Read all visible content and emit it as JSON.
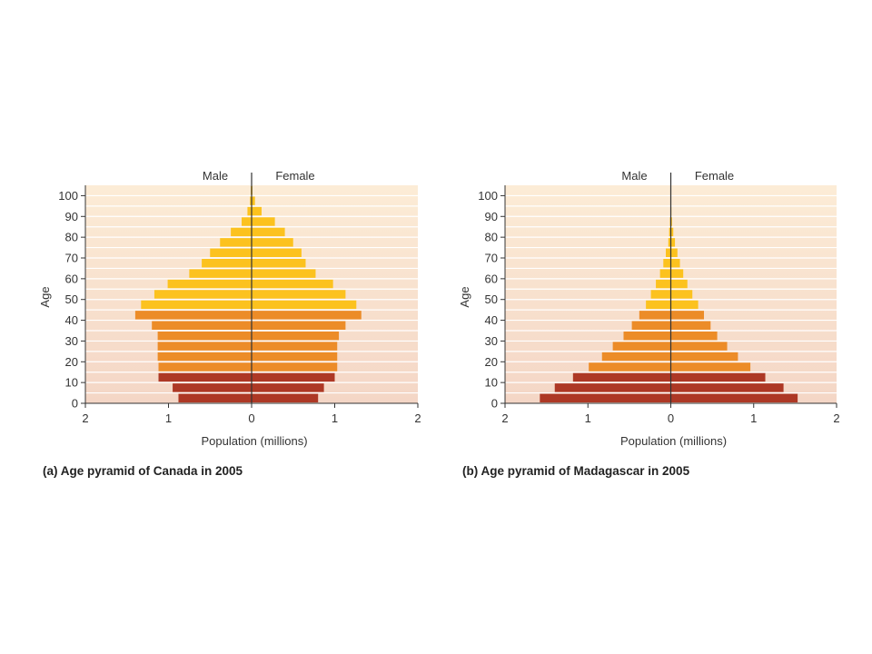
{
  "colors": {
    "background_top": "#fcecd6",
    "background_bottom": "#f4d6c6",
    "young": "#ad3825",
    "middle": "#ec8c28",
    "old": "#fcc21e",
    "grid": "#ffffff",
    "axis": "#333333"
  },
  "age_groups": [
    "0-4",
    "5-9",
    "10-14",
    "15-19",
    "20-24",
    "25-29",
    "30-34",
    "35-39",
    "40-44",
    "45-49",
    "50-54",
    "55-59",
    "60-64",
    "65-69",
    "70-74",
    "75-79",
    "80-84",
    "85-89",
    "90-94",
    "95-99",
    "100+"
  ],
  "chart_data": [
    {
      "type": "bar",
      "caption": "(a) Age pyramid of Canada in 2005",
      "xlabel": "Population (millions)",
      "ylabel": "Age",
      "left_label": "Male",
      "right_label": "Female",
      "xlim": [
        -2,
        2
      ],
      "xticks": [
        "2",
        "1",
        "0",
        "1",
        "2"
      ],
      "ylim": [
        0,
        100
      ],
      "yticks": [
        "0",
        "10",
        "20",
        "30",
        "40",
        "50",
        "60",
        "70",
        "80",
        "90",
        "100"
      ],
      "grid": true,
      "series": [
        {
          "name": "Male",
          "values": [
            0.88,
            0.95,
            1.12,
            1.12,
            1.13,
            1.13,
            1.13,
            1.2,
            1.4,
            1.33,
            1.17,
            1.01,
            0.75,
            0.6,
            0.5,
            0.38,
            0.25,
            0.12,
            0.05,
            0.02,
            0.01
          ]
        },
        {
          "name": "Female",
          "values": [
            0.8,
            0.87,
            1.0,
            1.03,
            1.03,
            1.03,
            1.05,
            1.13,
            1.32,
            1.26,
            1.13,
            0.98,
            0.77,
            0.65,
            0.6,
            0.5,
            0.4,
            0.28,
            0.12,
            0.04,
            0.01
          ]
        }
      ]
    },
    {
      "type": "bar",
      "caption": "(b) Age pyramid of Madagascar in 2005",
      "xlabel": "Population (millions)",
      "ylabel": "Age",
      "left_label": "Male",
      "right_label": "Female",
      "xlim": [
        -2,
        2
      ],
      "xticks": [
        "2",
        "1",
        "0",
        "1",
        "2"
      ],
      "ylim": [
        0,
        100
      ],
      "yticks": [
        "0",
        "10",
        "20",
        "30",
        "40",
        "50",
        "60",
        "70",
        "80",
        "90",
        "100"
      ],
      "grid": true,
      "series": [
        {
          "name": "Male",
          "values": [
            1.58,
            1.4,
            1.18,
            0.99,
            0.83,
            0.7,
            0.57,
            0.47,
            0.38,
            0.3,
            0.24,
            0.18,
            0.13,
            0.09,
            0.06,
            0.03,
            0.02,
            0.01,
            0.005,
            0.002,
            0.001
          ]
        },
        {
          "name": "Female",
          "values": [
            1.53,
            1.36,
            1.14,
            0.96,
            0.81,
            0.68,
            0.56,
            0.48,
            0.4,
            0.33,
            0.26,
            0.2,
            0.15,
            0.11,
            0.08,
            0.05,
            0.03,
            0.015,
            0.007,
            0.003,
            0.001
          ]
        }
      ]
    }
  ]
}
